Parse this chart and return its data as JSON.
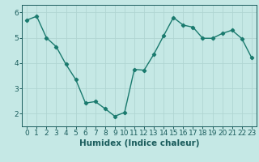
{
  "x": [
    0,
    1,
    2,
    3,
    4,
    5,
    6,
    7,
    8,
    9,
    10,
    11,
    12,
    13,
    14,
    15,
    16,
    17,
    18,
    19,
    20,
    21,
    22,
    23
  ],
  "y": [
    5.7,
    5.85,
    5.0,
    4.65,
    3.95,
    3.35,
    2.42,
    2.48,
    2.2,
    1.9,
    2.05,
    3.75,
    3.72,
    4.35,
    5.08,
    5.8,
    5.5,
    5.42,
    4.98,
    4.98,
    5.17,
    5.3,
    4.97,
    4.22
  ],
  "line_color": "#1a7a6e",
  "marker": "D",
  "markersize": 2.2,
  "linewidth": 1.0,
  "xlabel": "Humidex (Indice chaleur)",
  "xlim": [
    -0.5,
    23.5
  ],
  "ylim": [
    1.5,
    6.3
  ],
  "yticks": [
    2,
    3,
    4,
    5,
    6
  ],
  "xticks": [
    0,
    1,
    2,
    3,
    4,
    5,
    6,
    7,
    8,
    9,
    10,
    11,
    12,
    13,
    14,
    15,
    16,
    17,
    18,
    19,
    20,
    21,
    22,
    23
  ],
  "bg_color": "#c5e8e5",
  "grid_color": "#b0d5d2",
  "tick_color": "#1a5c5c",
  "label_color": "#1a5c5c",
  "xlabel_fontsize": 7.5,
  "tick_fontsize": 6.5
}
